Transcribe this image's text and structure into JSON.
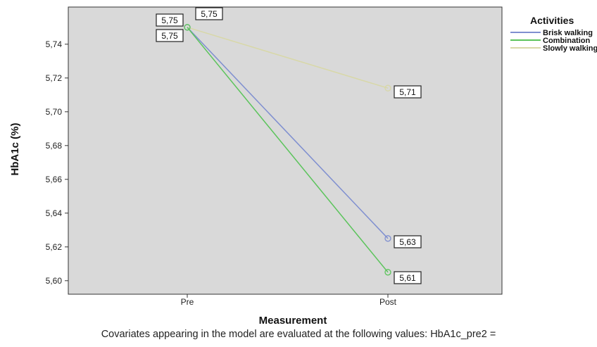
{
  "chart_data": {
    "type": "line",
    "categories": [
      "Pre",
      "Post"
    ],
    "series": [
      {
        "name": "Brisk walking",
        "values": [
          5.75,
          5.625
        ],
        "labels": [
          "5,75",
          "5,63"
        ],
        "color": "#7f8fd0"
      },
      {
        "name": "Combination",
        "values": [
          5.75,
          5.605
        ],
        "labels": [
          "5,75",
          "5,61"
        ],
        "color": "#5bc45b"
      },
      {
        "name": "Slowly walking",
        "values": [
          5.75,
          5.714
        ],
        "labels": [
          "5,75",
          "5,71"
        ],
        "color": "#d8d8a8"
      }
    ],
    "xlabel": "Measurement",
    "ylabel": "HbA1c (%)",
    "ylim": [
      5.592,
      5.762
    ],
    "yticks": [
      "5,60",
      "5,62",
      "5,64",
      "5,66",
      "5,68",
      "5,70",
      "5,72",
      "5,74"
    ],
    "legend_title": "Activities",
    "legend_position": "right",
    "plot_background": "#d9d9d9",
    "grid": false
  },
  "footnote": "Covariates appearing in the model are evaluated at the following values: HbA1c_pre2 ="
}
